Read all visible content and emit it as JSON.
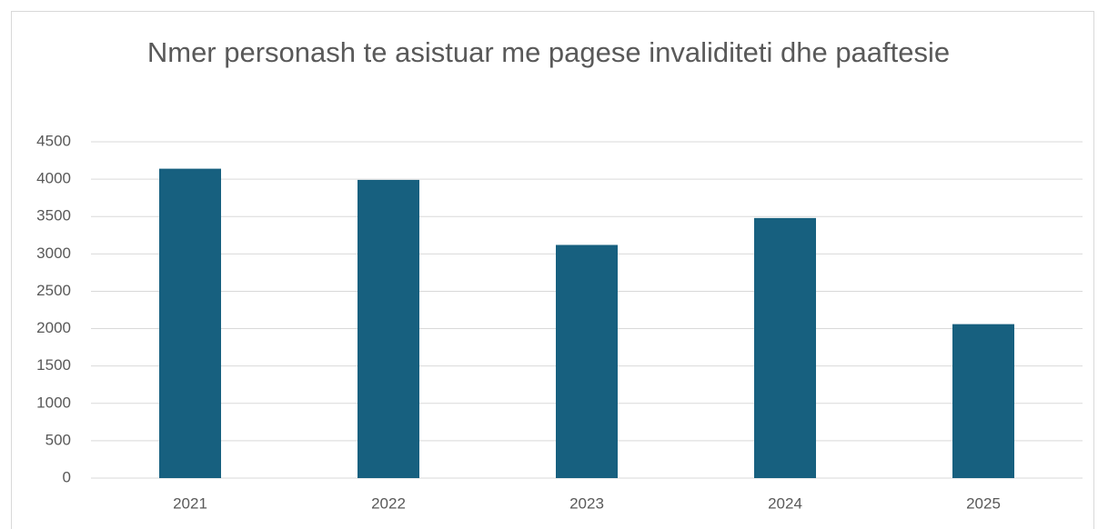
{
  "chart_data": {
    "type": "bar",
    "title": "Nmer personash te asistuar me pagese invaliditeti dhe paaftesie",
    "categories": [
      "2021",
      "2022",
      "2023",
      "2024",
      "2025"
    ],
    "values": [
      4140,
      3990,
      3120,
      3480,
      2060
    ],
    "color": "#17607f",
    "ylim": [
      0,
      4500
    ],
    "yticks": [
      0,
      500,
      1000,
      1500,
      2000,
      2500,
      3000,
      3500,
      4000,
      4500
    ],
    "grid": true
  }
}
